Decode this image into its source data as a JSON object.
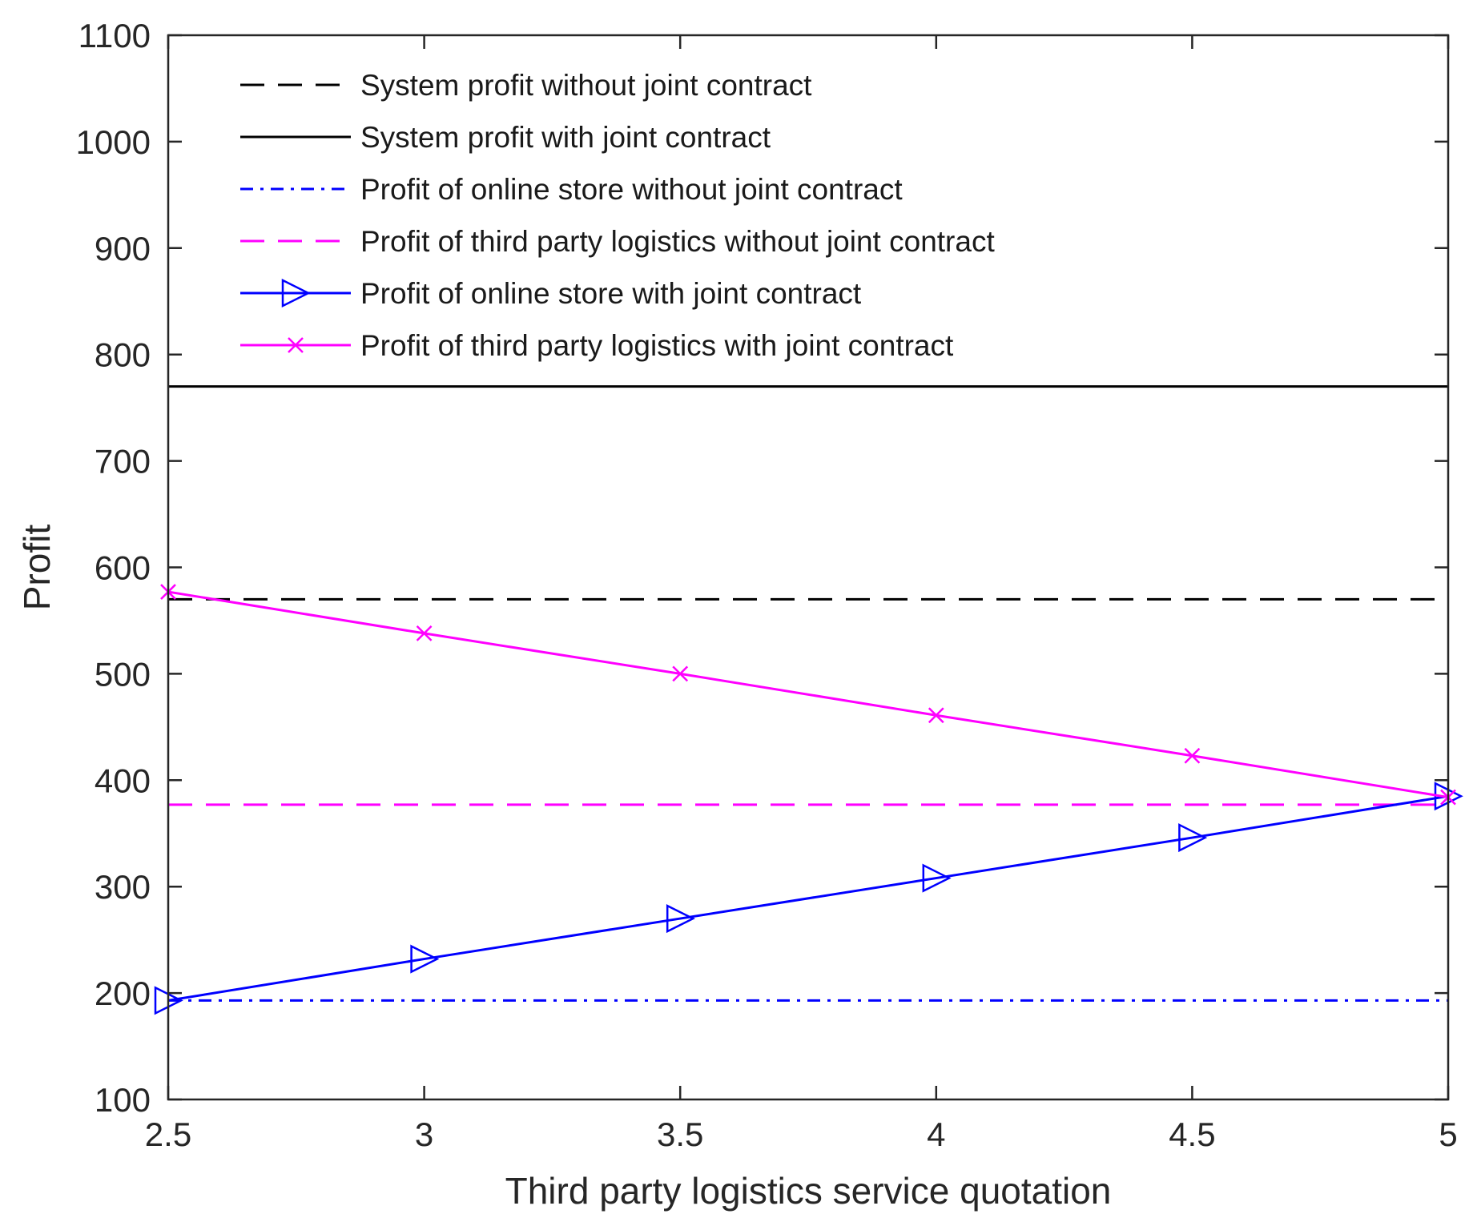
{
  "chart_data": {
    "type": "line",
    "xlabel": "Third party logistics service quotation",
    "ylabel": "Profit",
    "xlim": [
      2.5,
      5
    ],
    "ylim": [
      100,
      1100
    ],
    "xticks": [
      2.5,
      3,
      3.5,
      4,
      4.5,
      5
    ],
    "xtick_labels": [
      "2.5",
      "3",
      "3.5",
      "4",
      "4.5",
      "5"
    ],
    "yticks": [
      100,
      200,
      300,
      400,
      500,
      600,
      700,
      800,
      900,
      1000,
      1100
    ],
    "ytick_labels": [
      "100",
      "200",
      "300",
      "400",
      "500",
      "600",
      "700",
      "800",
      "900",
      "1000",
      "1100"
    ],
    "grid": false,
    "legend_position": "top-left",
    "x": [
      2.5,
      3,
      3.5,
      4,
      4.5,
      5
    ],
    "series": [
      {
        "name": "System profit without joint contract",
        "values": [
          570,
          570,
          570,
          570,
          570,
          570
        ],
        "color": "#000000",
        "dash": "dashed",
        "marker": "none"
      },
      {
        "name": "System profit with joint contract",
        "values": [
          770,
          770,
          770,
          770,
          770,
          770
        ],
        "color": "#000000",
        "dash": "solid",
        "marker": "none"
      },
      {
        "name": "Profit of online store without joint contract",
        "values": [
          193,
          193,
          193,
          193,
          193,
          193
        ],
        "color": "#0000ff",
        "dash": "dashdot",
        "marker": "none"
      },
      {
        "name": "Profit of third party logistics without joint contract",
        "values": [
          377,
          377,
          377,
          377,
          377,
          377
        ],
        "color": "#ff00ff",
        "dash": "dashed",
        "marker": "none"
      },
      {
        "name": "Profit of online store with joint contract",
        "values": [
          193,
          232,
          270,
          308,
          346,
          385
        ],
        "color": "#0000ff",
        "dash": "solid",
        "marker": "triangle-right"
      },
      {
        "name": "Profit of third party logistics with joint contract",
        "values": [
          577,
          538,
          500,
          461,
          423,
          384
        ],
        "color": "#ff00ff",
        "dash": "solid",
        "marker": "x"
      }
    ]
  }
}
